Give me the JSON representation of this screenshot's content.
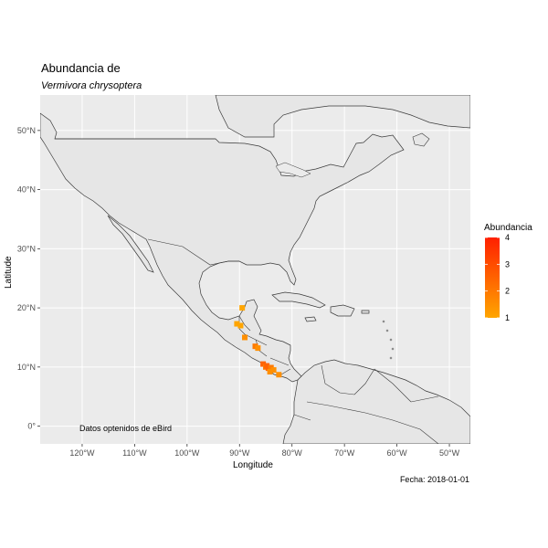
{
  "title": "Abundancia de",
  "subtitle": "Vermivora chrysoptera",
  "caption": "Fecha: 2018-01-01",
  "annotation": "Datos optenidos de eBird",
  "chart_data": {
    "type": "map-scatter",
    "xlabel": "Longitude",
    "ylabel": "Latitude",
    "xlim": [
      -128,
      -46
    ],
    "ylim": [
      -3,
      56
    ],
    "x_ticks": [
      {
        "value": -120,
        "label": "120°W"
      },
      {
        "value": -110,
        "label": "110°W"
      },
      {
        "value": -100,
        "label": "100°W"
      },
      {
        "value": -90,
        "label": "90°W"
      },
      {
        "value": -80,
        "label": "80°W"
      },
      {
        "value": -70,
        "label": "70°W"
      },
      {
        "value": -60,
        "label": "60°W"
      },
      {
        "value": -50,
        "label": "50°W"
      }
    ],
    "y_ticks": [
      {
        "value": 0,
        "label": "0°"
      },
      {
        "value": 10,
        "label": "10°N"
      },
      {
        "value": 20,
        "label": "20°N"
      },
      {
        "value": 30,
        "label": "30°N"
      },
      {
        "value": 40,
        "label": "40°N"
      },
      {
        "value": 50,
        "label": "50°N"
      }
    ],
    "legend": {
      "title": "Abundancia",
      "min": 1,
      "max": 4,
      "ticks": [
        "1",
        "2",
        "3",
        "4"
      ],
      "color_low": "#FFA500",
      "color_high": "#FF2000",
      "placement": "right"
    },
    "points": [
      {
        "lon": -89.5,
        "lat": 20.0,
        "abundancia": 1
      },
      {
        "lon": -90.5,
        "lat": 17.3,
        "abundancia": 1
      },
      {
        "lon": -89.8,
        "lat": 17.0,
        "abundancia": 1
      },
      {
        "lon": -89.0,
        "lat": 15.0,
        "abundancia": 1.5
      },
      {
        "lon": -87.0,
        "lat": 13.5,
        "abundancia": 2
      },
      {
        "lon": -86.5,
        "lat": 13.2,
        "abundancia": 1.5
      },
      {
        "lon": -85.5,
        "lat": 10.5,
        "abundancia": 2.5
      },
      {
        "lon": -85.0,
        "lat": 10.0,
        "abundancia": 2
      },
      {
        "lon": -84.8,
        "lat": 10.2,
        "abundancia": 2.5
      },
      {
        "lon": -84.5,
        "lat": 9.8,
        "abundancia": 2.5
      },
      {
        "lon": -84.0,
        "lat": 9.9,
        "abundancia": 2
      },
      {
        "lon": -83.5,
        "lat": 9.5,
        "abundancia": 1.5
      },
      {
        "lon": -82.5,
        "lat": 8.7,
        "abundancia": 1.5
      },
      {
        "lon": -84.2,
        "lat": 9.2,
        "abundancia": 1.5
      }
    ]
  }
}
